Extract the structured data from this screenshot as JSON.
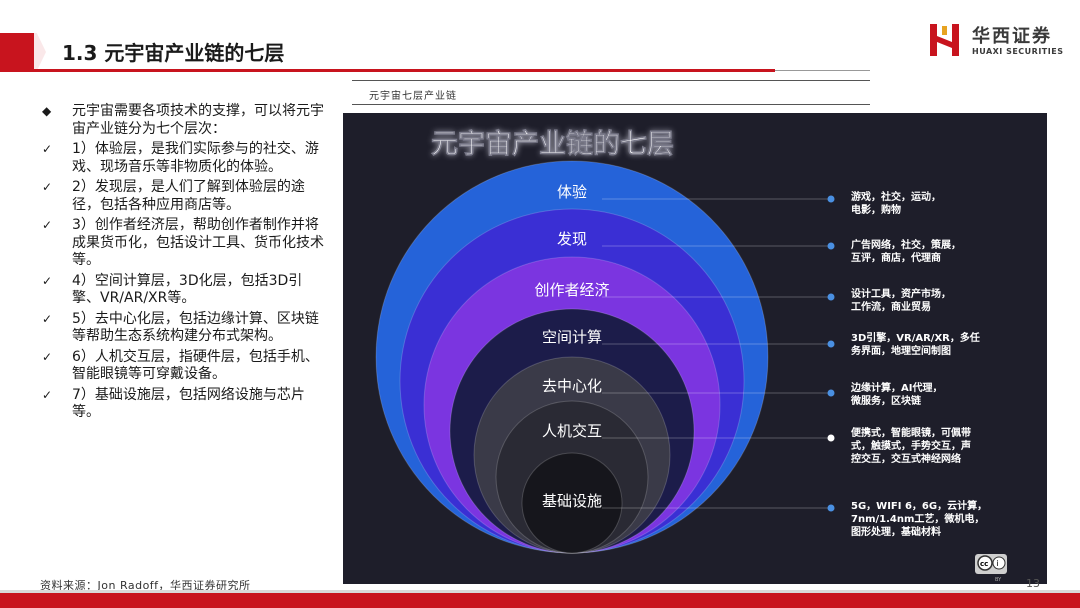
{
  "page": {
    "title": "1.3 元宇宙产业链的七层",
    "page_number": "13"
  },
  "logo": {
    "name_cn": "华西证券",
    "name_en": "HUAXI SECURITIES",
    "brand_color": "#c8141e"
  },
  "intro": "元宇宙需要各项技术的支撑，可以将元宇宙产业链分为七个层次：",
  "points": [
    "1）体验层，是我们实际参与的社交、游戏、现场音乐等非物质化的体验。",
    "2）发现层，是人们了解到体验层的途径，包括各种应用商店等。",
    "3）创作者经济层，帮助创作者制作并将成果货币化，包括设计工具、货币化技术等。",
    "4）空间计算层，3D化层，包括3D引擎、VR/AR/XR等。",
    "5）去中心化层，包括边缘计算、区块链等帮助生态系统构建分布式架构。",
    "6）人机交互层，指硬件层，包括手机、智能眼镜等可穿戴设备。",
    "7）基础设施层，包括网络设施与芯片等。"
  ],
  "figure": {
    "caption": "元宇宙七层产业链",
    "heading": "元宇宙产业链的七层",
    "layers": [
      {
        "name": "体验",
        "desc": [
          "游戏，社交，运动，",
          "电影，购物"
        ],
        "color": "#2563d9"
      },
      {
        "name": "发现",
        "desc": [
          "广告网络，社交，策展，",
          "互评，商店，代理商"
        ],
        "color": "#3a2fd4"
      },
      {
        "name": "创作者经济",
        "desc": [
          "设计工具，资产市场，",
          "工作流，商业贸易"
        ],
        "color": "#7b35e0"
      },
      {
        "name": "空间计算",
        "desc": [
          "3D引擎，VR/AR/XR，多任",
          "务界面，地理空间制图"
        ],
        "color": "#1c1c4a"
      },
      {
        "name": "去中心化",
        "desc": [
          "边缘计算，AI代理，",
          "微服务，区块链"
        ],
        "color": "#3a3a48"
      },
      {
        "name": "人机交互",
        "desc": [
          "便携式，智能眼镜，可佩带",
          "式，触摸式，手势交互，声",
          "控交互，交互式神经网络"
        ],
        "color": "#2a2a34"
      },
      {
        "name": "基础设施",
        "desc": [
          "5G，WIFI 6，6G，云计算，",
          "7nm/1.4nm工艺，微机电，",
          "图形处理，基础材料"
        ],
        "color": "#16161c"
      }
    ],
    "license_badge": "BY"
  },
  "source": "资料来源：Jon Radoff，华西证券研究所"
}
